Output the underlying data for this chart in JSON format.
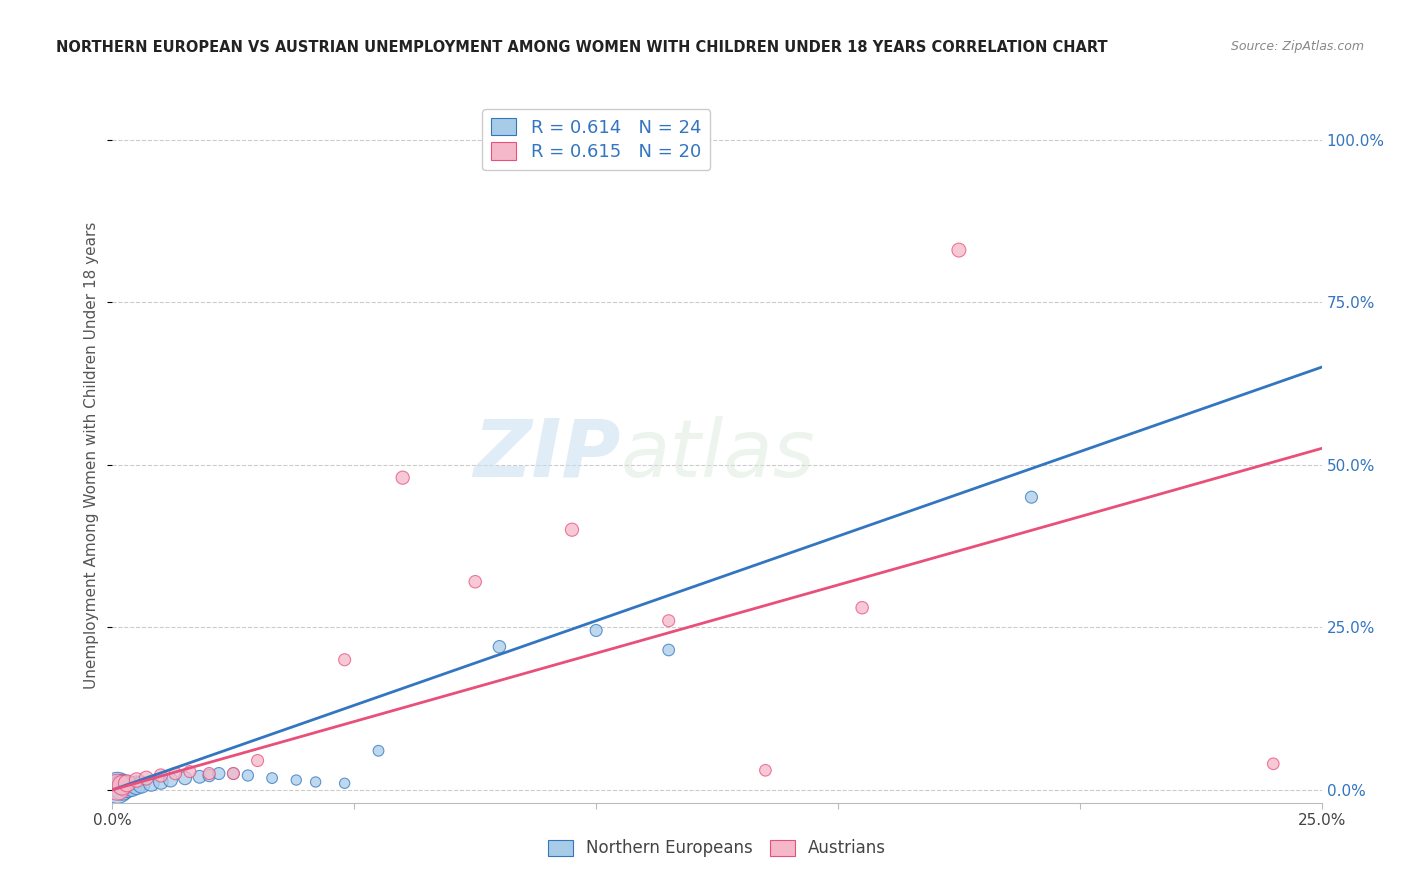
{
  "title": "NORTHERN EUROPEAN VS AUSTRIAN UNEMPLOYMENT AMONG WOMEN WITH CHILDREN UNDER 18 YEARS CORRELATION CHART",
  "source": "Source: ZipAtlas.com",
  "ylabel": "Unemployment Among Women with Children Under 18 years",
  "xlim": [
    0.0,
    0.25
  ],
  "ylim": [
    -0.02,
    1.05
  ],
  "yticks": [
    0.0,
    0.25,
    0.5,
    0.75,
    1.0
  ],
  "ytick_labels": [
    "0.0%",
    "25.0%",
    "50.0%",
    "75.0%",
    "100.0%"
  ],
  "xticks": [
    0.0,
    0.05,
    0.1,
    0.15,
    0.2,
    0.25
  ],
  "xtick_labels": [
    "0.0%",
    "",
    "",
    "",
    "",
    "25.0%"
  ],
  "blue_color": "#a8cce8",
  "pink_color": "#f5b8ca",
  "blue_line_color": "#3375c0",
  "pink_line_color": "#e8507a",
  "legend_blue_label": "R = 0.614   N = 24",
  "legend_pink_label": "R = 0.615   N = 20",
  "footer_blue_label": "Northern Europeans",
  "footer_pink_label": "Austrians",
  "watermark_zip": "ZIP",
  "watermark_atlas": "atlas",
  "blue_r": 0.614,
  "blue_n": 24,
  "pink_r": 0.615,
  "pink_n": 20,
  "blue_line_slope": 2.6,
  "blue_line_intercept": 0.0,
  "pink_line_slope": 2.1,
  "pink_line_intercept": 0.0,
  "blue_points_x": [
    0.001,
    0.002,
    0.003,
    0.004,
    0.005,
    0.006,
    0.008,
    0.01,
    0.012,
    0.015,
    0.018,
    0.02,
    0.022,
    0.025,
    0.028,
    0.033,
    0.038,
    0.042,
    0.048,
    0.055,
    0.08,
    0.1,
    0.115,
    0.19
  ],
  "blue_points_y": [
    0.003,
    0.004,
    0.005,
    0.005,
    0.007,
    0.008,
    0.01,
    0.012,
    0.015,
    0.018,
    0.02,
    0.022,
    0.025,
    0.025,
    0.022,
    0.018,
    0.015,
    0.012,
    0.01,
    0.06,
    0.22,
    0.245,
    0.215,
    0.45
  ],
  "blue_sizes": [
    500,
    350,
    250,
    200,
    180,
    150,
    130,
    110,
    100,
    90,
    85,
    80,
    75,
    70,
    65,
    60,
    55,
    55,
    55,
    60,
    80,
    75,
    70,
    75
  ],
  "pink_points_x": [
    0.001,
    0.002,
    0.003,
    0.005,
    0.007,
    0.01,
    0.013,
    0.016,
    0.02,
    0.025,
    0.03,
    0.048,
    0.06,
    0.075,
    0.095,
    0.115,
    0.135,
    0.155,
    0.175,
    0.24
  ],
  "pink_points_y": [
    0.004,
    0.007,
    0.01,
    0.015,
    0.018,
    0.022,
    0.025,
    0.028,
    0.025,
    0.025,
    0.045,
    0.2,
    0.48,
    0.32,
    0.4,
    0.26,
    0.03,
    0.28,
    0.83,
    0.04
  ],
  "pink_sizes": [
    350,
    200,
    150,
    110,
    100,
    90,
    80,
    75,
    75,
    75,
    75,
    75,
    90,
    80,
    90,
    75,
    70,
    80,
    100,
    70
  ]
}
